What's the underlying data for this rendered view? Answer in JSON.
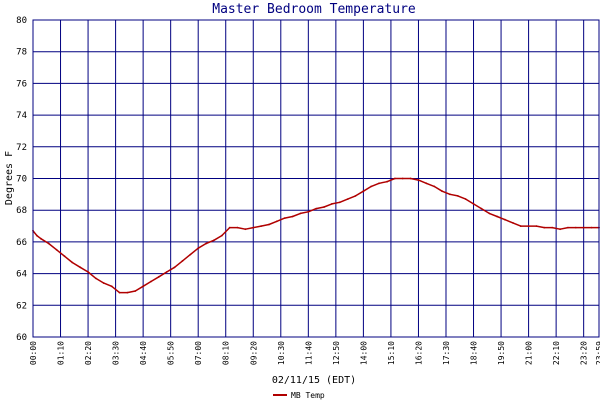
{
  "chart_data": {
    "type": "line",
    "title": "Master Bedroom Temperature",
    "xlabel": "02/11/15 (EDT)",
    "ylabel": "Degrees F",
    "ylim": [
      60,
      80
    ],
    "yticks": [
      60,
      62,
      64,
      66,
      68,
      70,
      72,
      74,
      76,
      78,
      80
    ],
    "xticks": [
      "00:00",
      "01:10",
      "02:20",
      "03:30",
      "04:40",
      "05:50",
      "07:00",
      "08:10",
      "09:20",
      "10:30",
      "11:40",
      "12:50",
      "14:00",
      "15:10",
      "16:20",
      "17:30",
      "18:40",
      "19:50",
      "21:00",
      "22:10",
      "23:20",
      "23:59"
    ],
    "xlim": [
      "00:00",
      "23:59"
    ],
    "grid": true,
    "legend_position": "bottom-left",
    "colors": {
      "series": "#b00000",
      "grid": "#000080",
      "frame": "#000080",
      "title": "#000080"
    },
    "series": [
      {
        "name": "MB Temp",
        "x": [
          "00:00",
          "00:10",
          "00:20",
          "00:40",
          "01:00",
          "01:20",
          "01:40",
          "02:00",
          "02:20",
          "02:40",
          "03:00",
          "03:20",
          "03:40",
          "04:00",
          "04:20",
          "04:40",
          "05:00",
          "05:20",
          "05:40",
          "06:00",
          "06:20",
          "06:40",
          "07:00",
          "07:20",
          "07:40",
          "08:00",
          "08:20",
          "08:40",
          "09:00",
          "09:20",
          "09:40",
          "10:00",
          "10:20",
          "10:40",
          "11:00",
          "11:20",
          "11:40",
          "12:00",
          "12:20",
          "12:40",
          "13:00",
          "13:20",
          "13:40",
          "14:00",
          "14:20",
          "14:40",
          "15:00",
          "15:20",
          "15:40",
          "16:00",
          "16:20",
          "16:40",
          "17:00",
          "17:20",
          "17:40",
          "18:00",
          "18:20",
          "18:40",
          "19:00",
          "19:20",
          "19:40",
          "20:00",
          "20:20",
          "20:40",
          "21:00",
          "21:20",
          "21:40",
          "22:00",
          "22:20",
          "22:40",
          "23:00",
          "23:20",
          "23:40",
          "23:59"
        ],
        "values": [
          66.7,
          66.4,
          66.2,
          65.9,
          65.5,
          65.1,
          64.7,
          64.4,
          64.1,
          63.7,
          63.4,
          63.2,
          62.8,
          62.8,
          62.9,
          63.2,
          63.5,
          63.8,
          64.1,
          64.4,
          64.8,
          65.2,
          65.6,
          65.9,
          66.1,
          66.4,
          66.9,
          66.9,
          66.8,
          66.9,
          67.0,
          67.1,
          67.3,
          67.5,
          67.6,
          67.8,
          67.9,
          68.1,
          68.2,
          68.4,
          68.5,
          68.7,
          68.9,
          69.2,
          69.5,
          69.7,
          69.8,
          70.0,
          70.0,
          70.0,
          69.9,
          69.7,
          69.5,
          69.2,
          69.0,
          68.9,
          68.7,
          68.4,
          68.1,
          67.8,
          67.6,
          67.4,
          67.2,
          67.0,
          67.0,
          67.0,
          66.9,
          66.9,
          66.8,
          66.9,
          66.9,
          66.9,
          66.9,
          66.9
        ]
      }
    ]
  }
}
